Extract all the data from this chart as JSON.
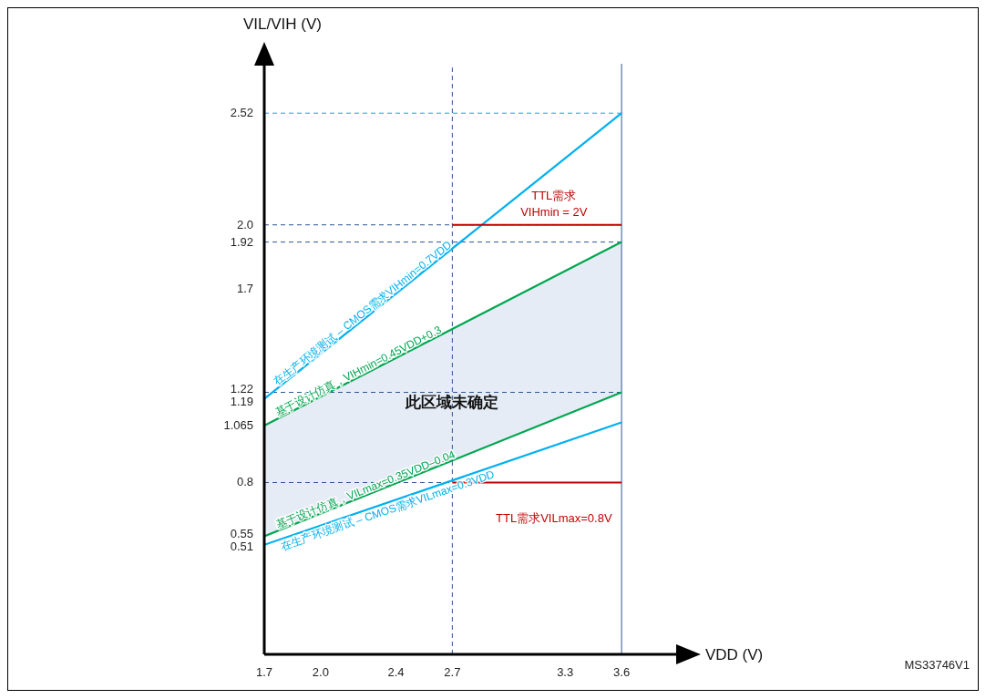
{
  "chart_data": {
    "type": "line",
    "xlabel": "VDD (V)",
    "ylabel": "VIL/VIH (V)",
    "xlim": [
      1.7,
      3.9
    ],
    "xticks": [
      1.7,
      {
        "value": 2,
        "label": "2.0"
      },
      2.4,
      2.7,
      3.3,
      3.6
    ],
    "ylim": [
      0,
      2.75
    ],
    "yticks": [
      0.51,
      0.55,
      0.8,
      1.065,
      1.19,
      1.22,
      1.7,
      1.92,
      {
        "value": 2,
        "label": "2.0"
      },
      2.52
    ],
    "series": [
      {
        "name": "在生产环境测试 – CMOS需求VIHmin=0.7VDD",
        "color": "#00b0f0",
        "x": [
          1.7,
          3.6
        ],
        "values": [
          1.19,
          2.52
        ]
      },
      {
        "name": "基于设计仿真，VIHmin=0.45VDD+0.3",
        "color": "#00a650",
        "x": [
          1.7,
          3.6
        ],
        "values": [
          1.065,
          1.92
        ],
        "lower": [
          0.55,
          1.22
        ],
        "upper": [
          1.065,
          1.92
        ]
      },
      {
        "name": "基于设计仿真，VILmax=0.35VDD–0.04",
        "color": "#00a650",
        "x": [
          1.7,
          3.6
        ],
        "values": [
          0.55,
          1.22
        ]
      },
      {
        "name": "在生产环境测试 – CMOS需求VILmax=0.3VDD",
        "color": "#00b0f0",
        "x": [
          1.7,
          3.6
        ],
        "values": [
          0.51,
          1.08
        ]
      },
      {
        "name": "TTL需求\nVIHmin = 2V",
        "color": "#c00000",
        "x": [
          2.7,
          3.6
        ],
        "values": [
          2,
          2
        ]
      },
      {
        "name": "TTL需求VILmax=0.8V",
        "color": "#c00000",
        "x": [
          2.7,
          3.6
        ],
        "values": [
          0.8,
          0.8
        ]
      }
    ],
    "ref_lines": [
      {
        "axis": "y",
        "value": 2.52,
        "color": "#00b0f0",
        "line_style": "dashed"
      },
      {
        "axis": "y",
        "value": 2,
        "color": "#2e5597",
        "line_style": "dashed"
      },
      {
        "axis": "y",
        "value": 1.92,
        "color": "#2e5597",
        "line_style": "dashed"
      },
      {
        "axis": "y",
        "value": 1.22,
        "color": "#2e5597",
        "line_style": "dashed"
      },
      {
        "axis": "y",
        "value": 0.8,
        "color": "#2e5597",
        "line_style": "dashed"
      },
      {
        "axis": "x",
        "value": 2.7,
        "color": "#2e5597",
        "line_style": "dashed"
      },
      {
        "axis": "x",
        "value": 3.6,
        "color": "#2e5597",
        "line_style": "solid"
      }
    ],
    "annotations": [
      {
        "text": "此区域未确定",
        "x": 2.7,
        "y": 1.15
      },
      "MS33746V1"
    ]
  }
}
